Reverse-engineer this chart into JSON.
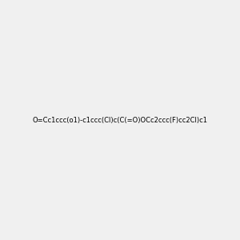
{
  "smiles": "O=Cc1ccc(o1)-c1ccc(Cl)c(C(=O)OCc2ccc(F)cc2Cl)c1",
  "title": "",
  "background_color": "#f0f0f0",
  "figsize": [
    3.0,
    3.0
  ],
  "dpi": 100,
  "atom_colors": {
    "O": "#ff0000",
    "Cl": "#00cc00",
    "F": "#cc00cc",
    "C": "#000000",
    "H": "#000000"
  }
}
